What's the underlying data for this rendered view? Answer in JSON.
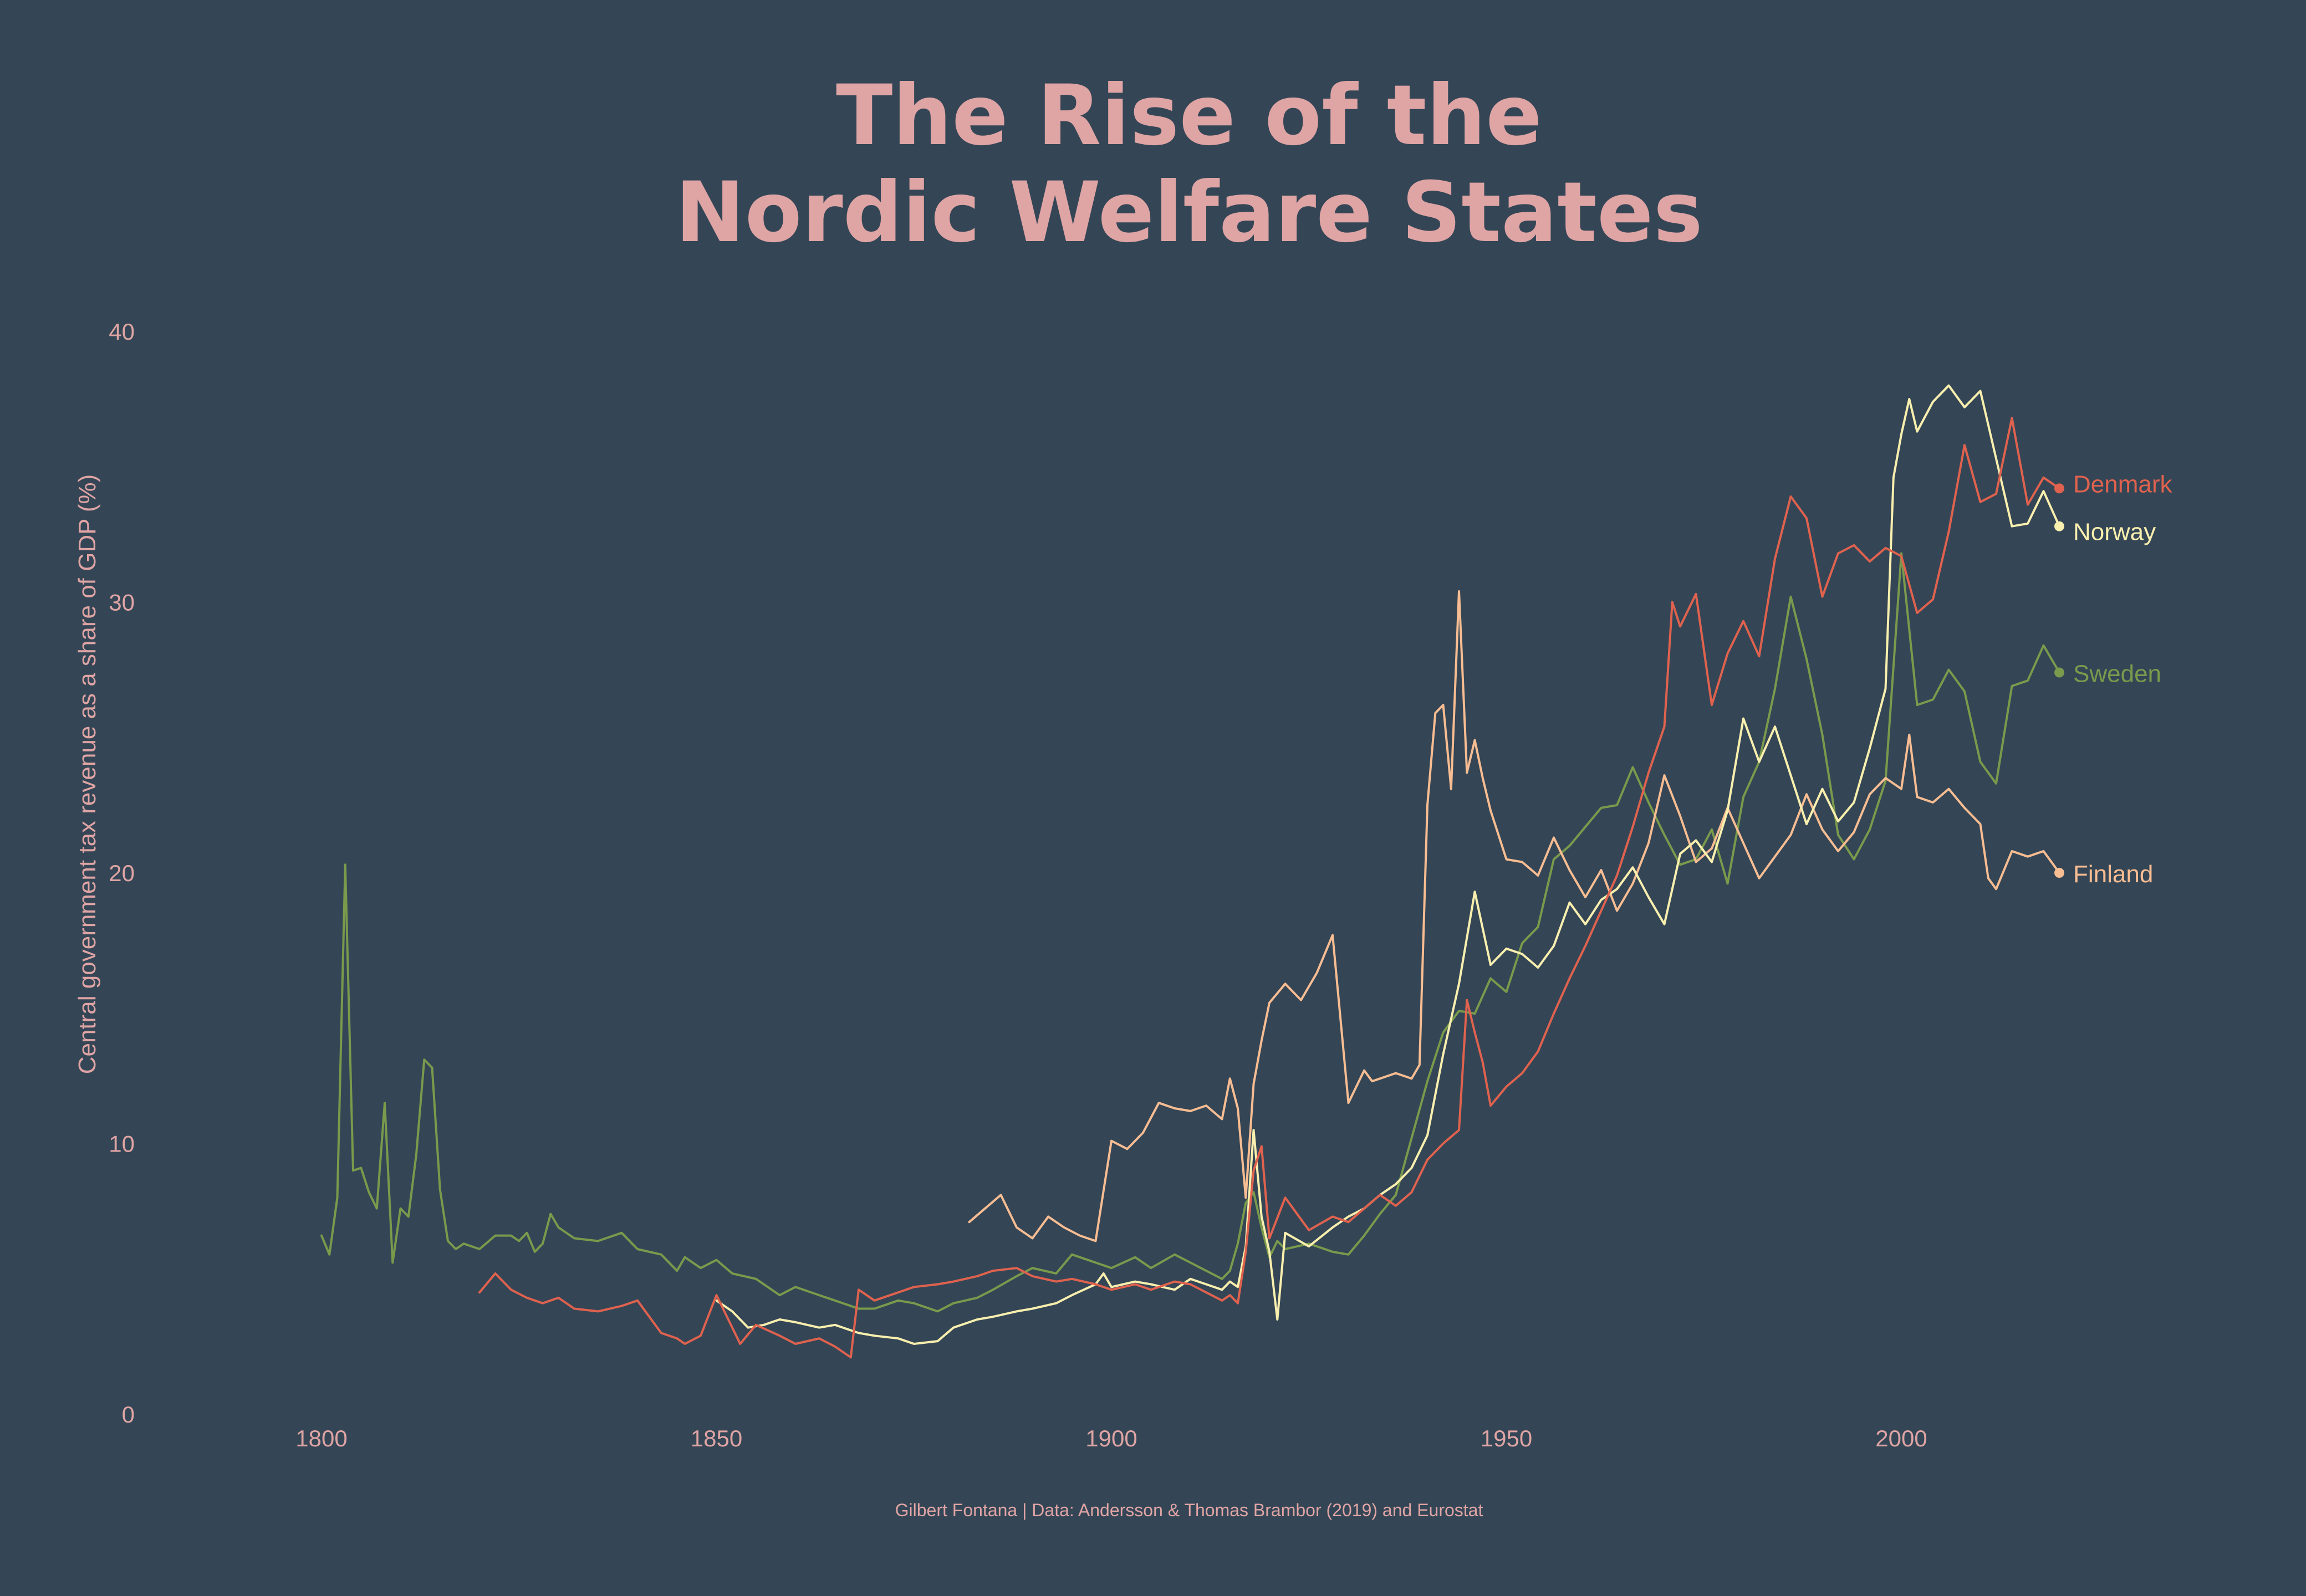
{
  "title": {
    "line1": "The Rise of the",
    "line2": "Nordic Welfare States"
  },
  "caption": "Gilbert Fontana | Data: Andersson & Thomas Brambor (2019) and Eurostat",
  "chart_data": {
    "type": "line",
    "title": "The Rise of the Nordic Welfare States",
    "xlabel": "",
    "ylabel": "Central government tax revenue as a share of GDP (%)",
    "xlim": [
      1788,
      2038
    ],
    "ylim": [
      0,
      40
    ],
    "xticks": [
      1800,
      1850,
      1900,
      1950,
      2000
    ],
    "yticks": [
      0,
      10,
      20,
      30,
      40
    ],
    "grid": false,
    "legend": "inline labels at right end of each line",
    "series": [
      {
        "name": "Sweden",
        "color": "#7a9a4c",
        "x": [
          1800,
          1801,
          1802,
          1803,
          1804,
          1805,
          1806,
          1807,
          1808,
          1809,
          1810,
          1811,
          1812,
          1813,
          1814,
          1815,
          1816,
          1817,
          1818,
          1820,
          1822,
          1824,
          1825,
          1826,
          1827,
          1828,
          1829,
          1830,
          1832,
          1835,
          1838,
          1840,
          1843,
          1845,
          1846,
          1848,
          1850,
          1852,
          1855,
          1858,
          1860,
          1863,
          1865,
          1868,
          1870,
          1873,
          1875,
          1878,
          1880,
          1883,
          1885,
          1888,
          1890,
          1893,
          1895,
          1898,
          1900,
          1903,
          1905,
          1908,
          1910,
          1912,
          1914,
          1915,
          1916,
          1917,
          1918,
          1919,
          1920,
          1921,
          1922,
          1925,
          1928,
          1930,
          1932,
          1934,
          1936,
          1938,
          1940,
          1942,
          1944,
          1946,
          1948,
          1950,
          1952,
          1954,
          1956,
          1958,
          1960,
          1962,
          1964,
          1966,
          1968,
          1970,
          1972,
          1974,
          1976,
          1978,
          1980,
          1982,
          1984,
          1986,
          1988,
          1990,
          1992,
          1994,
          1996,
          1998,
          2000,
          2002,
          2004,
          2006,
          2008,
          2010,
          2012,
          2014,
          2016,
          2018,
          2020
        ],
        "y": [
          6.6,
          5.9,
          8.0,
          20.3,
          9.0,
          9.1,
          8.2,
          7.6,
          11.5,
          5.6,
          7.6,
          7.3,
          9.6,
          13.1,
          12.8,
          8.3,
          6.4,
          6.1,
          6.3,
          6.1,
          6.6,
          6.6,
          6.4,
          6.7,
          6.0,
          6.3,
          7.4,
          6.9,
          6.5,
          6.4,
          6.7,
          6.1,
          5.9,
          5.3,
          5.8,
          5.4,
          5.7,
          5.2,
          5.0,
          4.4,
          4.7,
          4.4,
          4.2,
          3.9,
          3.9,
          4.2,
          4.1,
          3.8,
          4.1,
          4.3,
          4.6,
          5.1,
          5.4,
          5.2,
          5.9,
          5.6,
          5.4,
          5.8,
          5.4,
          5.9,
          5.6,
          5.3,
          5.0,
          5.3,
          6.3,
          7.8,
          8.2,
          6.9,
          5.8,
          6.4,
          6.1,
          6.3,
          6.0,
          5.9,
          6.6,
          7.4,
          8.1,
          10.2,
          12.3,
          14.1,
          14.9,
          14.8,
          16.1,
          15.6,
          17.4,
          18.0,
          20.5,
          21.0,
          21.7,
          22.4,
          22.5,
          23.9,
          22.6,
          21.4,
          20.3,
          20.5,
          21.6,
          19.6,
          22.8,
          24.1,
          26.8,
          30.2,
          27.9,
          25.1,
          21.4,
          20.5,
          21.6,
          23.4,
          31.8,
          26.2,
          26.4,
          27.5,
          26.7,
          24.1,
          23.3,
          26.9,
          27.1,
          28.4,
          27.4
        ]
      },
      {
        "name": "Denmark",
        "color": "#e0624e",
        "x": [
          1820,
          1822,
          1824,
          1826,
          1828,
          1830,
          1832,
          1835,
          1838,
          1840,
          1843,
          1845,
          1846,
          1848,
          1850,
          1852,
          1853,
          1855,
          1858,
          1860,
          1863,
          1865,
          1867,
          1868,
          1870,
          1873,
          1875,
          1878,
          1880,
          1883,
          1885,
          1888,
          1890,
          1893,
          1895,
          1898,
          1900,
          1903,
          1905,
          1908,
          1910,
          1912,
          1914,
          1915,
          1916,
          1917,
          1918,
          1919,
          1920,
          1922,
          1925,
          1928,
          1930,
          1932,
          1934,
          1936,
          1938,
          1940,
          1942,
          1944,
          1945,
          1946,
          1947,
          1948,
          1950,
          1952,
          1954,
          1956,
          1958,
          1960,
          1962,
          1964,
          1966,
          1968,
          1970,
          1971,
          1972,
          1974,
          1976,
          1978,
          1980,
          1982,
          1984,
          1986,
          1988,
          1990,
          1992,
          1994,
          1996,
          1998,
          2000,
          2002,
          2004,
          2006,
          2008,
          2010,
          2012,
          2014,
          2016,
          2018,
          2020
        ],
        "y": [
          4.5,
          5.2,
          4.6,
          4.3,
          4.1,
          4.3,
          3.9,
          3.8,
          4.0,
          4.2,
          3.0,
          2.8,
          2.6,
          2.9,
          4.4,
          3.2,
          2.6,
          3.3,
          2.9,
          2.6,
          2.8,
          2.5,
          2.1,
          4.6,
          4.2,
          4.5,
          4.7,
          4.8,
          4.9,
          5.1,
          5.3,
          5.4,
          5.1,
          4.9,
          5.0,
          4.8,
          4.6,
          4.8,
          4.6,
          4.9,
          4.8,
          4.5,
          4.2,
          4.4,
          4.1,
          6.0,
          9.0,
          9.9,
          6.5,
          8.0,
          6.8,
          7.3,
          7.1,
          7.6,
          8.1,
          7.7,
          8.2,
          9.4,
          10.0,
          10.5,
          15.3,
          14.1,
          13.0,
          11.4,
          12.1,
          12.6,
          13.4,
          14.8,
          16.1,
          17.3,
          18.6,
          19.9,
          21.7,
          23.7,
          25.4,
          30.0,
          29.1,
          30.3,
          26.2,
          28.1,
          29.3,
          28.0,
          31.6,
          33.9,
          33.1,
          30.2,
          31.8,
          32.1,
          31.5,
          32.0,
          31.7,
          29.6,
          30.1,
          32.6,
          35.8,
          33.7,
          34.0,
          36.8,
          33.6,
          34.6,
          34.2
        ]
      },
      {
        "name": "Norway",
        "color": "#f9efae",
        "x": [
          1850,
          1852,
          1854,
          1856,
          1858,
          1860,
          1863,
          1865,
          1868,
          1870,
          1873,
          1875,
          1878,
          1880,
          1883,
          1885,
          1888,
          1890,
          1893,
          1895,
          1898,
          1899,
          1900,
          1903,
          1905,
          1908,
          1910,
          1912,
          1914,
          1915,
          1916,
          1917,
          1918,
          1919,
          1920,
          1921,
          1922,
          1925,
          1928,
          1930,
          1932,
          1934,
          1936,
          1938,
          1940,
          1942,
          1944,
          1946,
          1948,
          1950,
          1952,
          1954,
          1956,
          1958,
          1960,
          1962,
          1964,
          1966,
          1968,
          1970,
          1972,
          1974,
          1976,
          1978,
          1980,
          1982,
          1984,
          1986,
          1988,
          1990,
          1992,
          1994,
          1996,
          1998,
          1999,
          2000,
          2001,
          2002,
          2004,
          2006,
          2008,
          2010,
          2012,
          2014,
          2016,
          2018,
          2020
        ],
        "y": [
          4.2,
          3.8,
          3.2,
          3.3,
          3.5,
          3.4,
          3.2,
          3.3,
          3.0,
          2.9,
          2.8,
          2.6,
          2.7,
          3.2,
          3.5,
          3.6,
          3.8,
          3.9,
          4.1,
          4.4,
          4.8,
          5.2,
          4.7,
          4.9,
          4.8,
          4.6,
          5.0,
          4.8,
          4.6,
          4.9,
          4.7,
          6.2,
          10.5,
          7.3,
          6.0,
          3.5,
          6.7,
          6.2,
          6.9,
          7.3,
          7.6,
          8.1,
          8.5,
          9.1,
          10.3,
          13.3,
          15.9,
          19.3,
          16.6,
          17.2,
          17.0,
          16.5,
          17.3,
          18.9,
          18.1,
          19.0,
          19.4,
          20.2,
          19.1,
          18.1,
          20.7,
          21.2,
          20.4,
          22.3,
          25.7,
          24.1,
          25.4,
          23.6,
          21.8,
          23.1,
          21.9,
          22.6,
          24.6,
          26.8,
          34.6,
          36.2,
          37.5,
          36.3,
          37.4,
          38.0,
          37.2,
          37.8,
          35.3,
          32.8,
          32.9,
          34.1,
          32.8
        ]
      },
      {
        "name": "Finland",
        "color": "#f8bd92",
        "x": [
          1882,
          1884,
          1886,
          1888,
          1890,
          1892,
          1894,
          1896,
          1898,
          1900,
          1902,
          1904,
          1906,
          1908,
          1910,
          1912,
          1914,
          1915,
          1916,
          1917,
          1918,
          1919,
          1920,
          1922,
          1924,
          1926,
          1928,
          1930,
          1932,
          1933,
          1934,
          1936,
          1938,
          1939,
          1940,
          1941,
          1942,
          1943,
          1944,
          1945,
          1946,
          1947,
          1948,
          1950,
          1952,
          1954,
          1956,
          1958,
          1960,
          1962,
          1964,
          1966,
          1968,
          1970,
          1972,
          1974,
          1976,
          1978,
          1980,
          1982,
          1984,
          1986,
          1988,
          1990,
          1992,
          1994,
          1996,
          1998,
          2000,
          2001,
          2002,
          2004,
          2006,
          2008,
          2010,
          2011,
          2012,
          2014,
          2016,
          2018,
          2020
        ],
        "y": [
          7.1,
          7.6,
          8.1,
          6.9,
          6.5,
          7.3,
          6.9,
          6.6,
          6.4,
          10.1,
          9.8,
          10.4,
          11.5,
          11.3,
          11.2,
          11.4,
          10.9,
          12.4,
          11.3,
          8.0,
          12.2,
          13.8,
          15.2,
          15.9,
          15.3,
          16.3,
          17.7,
          11.5,
          12.7,
          12.3,
          12.4,
          12.6,
          12.4,
          12.9,
          22.5,
          25.9,
          26.2,
          23.1,
          30.4,
          23.7,
          24.9,
          23.5,
          22.3,
          20.5,
          20.4,
          19.9,
          21.3,
          20.1,
          19.1,
          20.1,
          18.6,
          19.6,
          21.1,
          23.6,
          22.1,
          20.4,
          20.9,
          22.4,
          21.1,
          19.8,
          20.6,
          21.4,
          22.9,
          21.6,
          20.8,
          21.5,
          22.9,
          23.5,
          23.1,
          25.1,
          22.8,
          22.6,
          23.1,
          22.4,
          21.8,
          19.8,
          19.4,
          20.8,
          20.6,
          20.8,
          20.0
        ]
      }
    ]
  }
}
